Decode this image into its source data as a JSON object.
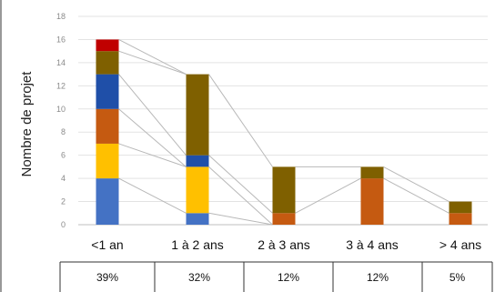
{
  "chart_data": {
    "type": "bar",
    "stacked": true,
    "title": "",
    "xlabel": "",
    "ylabel": "Nombre de projet",
    "ylim": [
      0,
      18
    ],
    "yticks": [
      0,
      2,
      4,
      6,
      8,
      10,
      12,
      14,
      16,
      18
    ],
    "grid": true,
    "categories": [
      "<1 an",
      "1 à 2 ans",
      "2 à 3 ans",
      "3 à 4 ans",
      "> 4 ans"
    ],
    "series": [
      {
        "color": "#4472c4",
        "values": [
          4,
          1,
          0,
          0,
          0
        ]
      },
      {
        "color": "#ffc000",
        "values": [
          3,
          4,
          0,
          0,
          0
        ]
      },
      {
        "color": "#c55a11",
        "values": [
          3,
          0,
          1,
          4,
          1
        ]
      },
      {
        "color": "#1f4fa8",
        "values": [
          3,
          1,
          0,
          0,
          0
        ]
      },
      {
        "color": "#7f6000",
        "values": [
          2,
          7,
          4,
          1,
          1
        ]
      },
      {
        "color": "#c00000",
        "values": [
          1,
          0,
          0,
          0,
          0
        ]
      }
    ],
    "table_row": [
      "39%",
      "32%",
      "12%",
      "12%",
      "5%"
    ]
  }
}
